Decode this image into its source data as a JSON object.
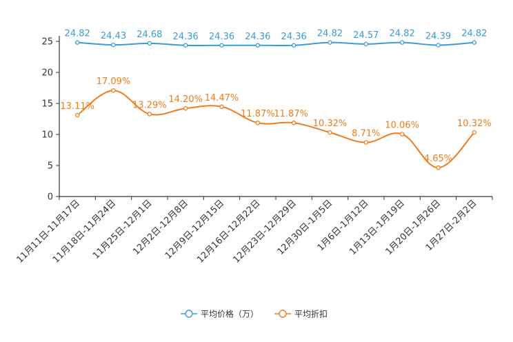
{
  "chart_data": {
    "type": "line",
    "title": "",
    "xlabel": "",
    "ylabel": "",
    "ylim": [
      0,
      25
    ],
    "yticks": [
      0,
      5,
      10,
      15,
      20,
      25
    ],
    "grid": false,
    "legend_position": "bottom",
    "categories": [
      "11月11日-11月17日",
      "11月18日-11月24日",
      "11月25日-12月1日",
      "12月2日-12月8日",
      "12月9日-12月15日",
      "12月16日-12月22日",
      "12月23日-12月29日",
      "12月30日-1月5日",
      "1月6日-1月12日",
      "1月13日-1月19日",
      "1月20日-1月26日",
      "1月27日-2月2日"
    ],
    "series": [
      {
        "name": "平均价格（万）",
        "color": "#3a9bd5",
        "values": [
          24.82,
          24.43,
          24.68,
          24.36,
          24.36,
          24.36,
          24.36,
          24.82,
          24.57,
          24.82,
          24.39,
          24.82
        ],
        "labels": [
          "24.82",
          "24.43",
          "24.68",
          "24.36",
          "24.36",
          "24.36",
          "24.36",
          "24.82",
          "24.57",
          "24.82",
          "24.39",
          "24.82"
        ]
      },
      {
        "name": "平均折扣",
        "color": "#f07c1b",
        "values": [
          13.11,
          17.09,
          13.29,
          14.2,
          14.47,
          11.87,
          11.87,
          10.32,
          8.71,
          10.06,
          4.65,
          10.32
        ],
        "labels": [
          "13.11%",
          "17.09%",
          "13.29%",
          "14.20%",
          "14.47%",
          "11.87%",
          "11.87%",
          "10.32%",
          "8.71%",
          "10.06%",
          "4.65%",
          "10.32%"
        ]
      }
    ]
  }
}
